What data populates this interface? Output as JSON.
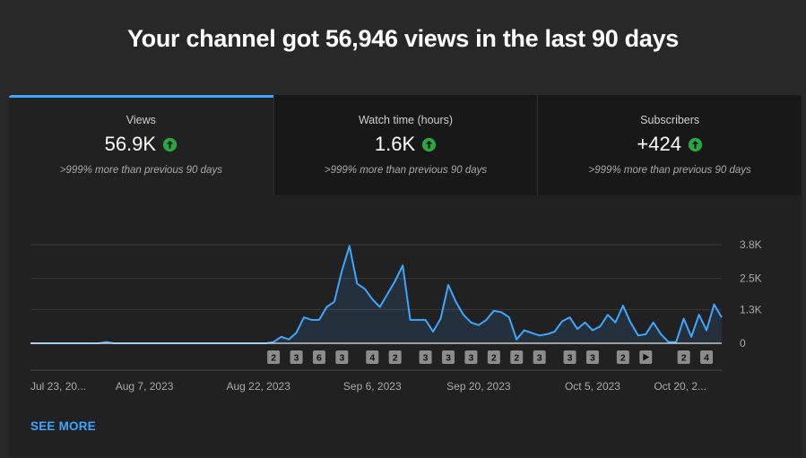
{
  "headline": "Your channel got 56,946 views in the last 90 days",
  "tabs": [
    {
      "label": "Views",
      "value": "56.9K",
      "change": ">999% more than previous 90 days"
    },
    {
      "label": "Watch time (hours)",
      "value": "1.6K",
      "change": ">999% more than previous 90 days"
    },
    {
      "label": "Subscribers",
      "value": "+424",
      "change": ">999% more than previous 90 days"
    }
  ],
  "colors": {
    "accent": "#3ea6ff",
    "up": "#2ba640",
    "line": "#3ea6ff"
  },
  "see_more": "SEE MORE",
  "chart_data": {
    "type": "area",
    "title": "Views",
    "y_ticks": [
      "3.8K",
      "2.5K",
      "1.3K",
      "0"
    ],
    "y_tick_values": [
      3800,
      2500,
      1300,
      0
    ],
    "ylim": [
      0,
      3800
    ],
    "x_labels": [
      "Jul 23, 20...",
      "Aug 7, 2023",
      "Aug 22, 2023",
      "Sep 6, 2023",
      "Sep 20, 2023",
      "Oct 5, 2023",
      "Oct 20, 2..."
    ],
    "x_label_days": [
      0,
      15,
      30,
      45,
      59,
      74,
      89
    ],
    "days": 92,
    "series": [
      {
        "name": "Views",
        "values": [
          0,
          0,
          0,
          0,
          0,
          0,
          0,
          0,
          0,
          0,
          50,
          0,
          0,
          0,
          0,
          0,
          0,
          0,
          0,
          0,
          0,
          0,
          0,
          0,
          0,
          0,
          0,
          0,
          0,
          0,
          0,
          0,
          50,
          250,
          150,
          400,
          1000,
          900,
          900,
          1400,
          1600,
          2800,
          3750,
          2300,
          2100,
          1700,
          1400,
          1900,
          2400,
          3000,
          900,
          900,
          900,
          450,
          950,
          2250,
          1600,
          1100,
          800,
          700,
          900,
          1250,
          1200,
          1000,
          150,
          500,
          400,
          300,
          350,
          450,
          850,
          1000,
          550,
          800,
          500,
          650,
          1100,
          800,
          1450,
          800,
          300,
          350,
          800,
          350,
          50,
          50,
          950,
          250,
          1100,
          500,
          1500,
          1000
        ]
      }
    ],
    "badges": [
      {
        "label": "2",
        "day": 32
      },
      {
        "label": "3",
        "day": 35
      },
      {
        "label": "6",
        "day": 38
      },
      {
        "label": "3",
        "day": 41
      },
      {
        "label": "4",
        "day": 45
      },
      {
        "label": "2",
        "day": 48
      },
      {
        "label": "3",
        "day": 52
      },
      {
        "label": "3",
        "day": 55
      },
      {
        "label": "3",
        "day": 58
      },
      {
        "label": "2",
        "day": 61
      },
      {
        "label": "2",
        "day": 64
      },
      {
        "label": "3",
        "day": 67
      },
      {
        "label": "3",
        "day": 71
      },
      {
        "label": "3",
        "day": 74
      },
      {
        "label": "2",
        "day": 78
      },
      {
        "label": "play",
        "day": 81
      },
      {
        "label": "2",
        "day": 86
      },
      {
        "label": "4",
        "day": 89
      }
    ]
  }
}
